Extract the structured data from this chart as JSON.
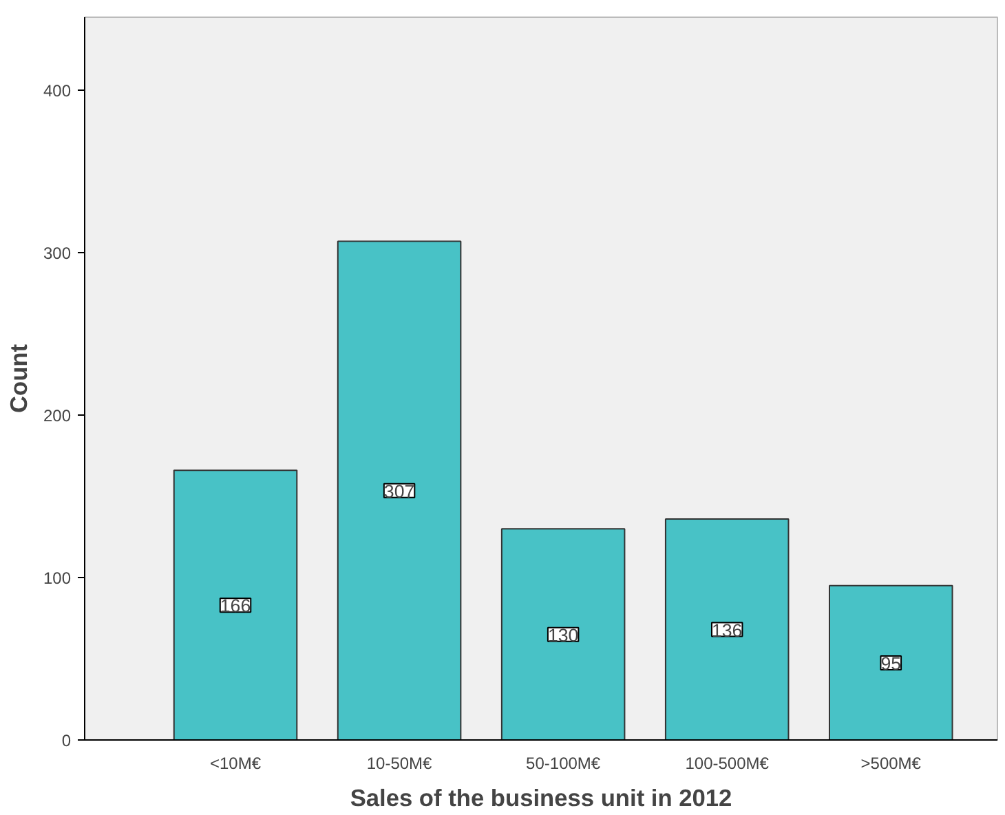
{
  "chart_data": {
    "type": "bar",
    "xlabel": "Sales of the business unit in 2012",
    "ylabel": "Count",
    "categories": [
      "<10M€",
      "10-50M€",
      "50-100M€",
      "100-500M€",
      ">500M€"
    ],
    "values": [
      166,
      307,
      130,
      136,
      95
    ],
    "color": "#48c2c6",
    "ylim": [
      0,
      445
    ],
    "yticks": [
      0,
      100,
      200,
      300,
      400
    ],
    "grid": false,
    "data_labels": true
  }
}
